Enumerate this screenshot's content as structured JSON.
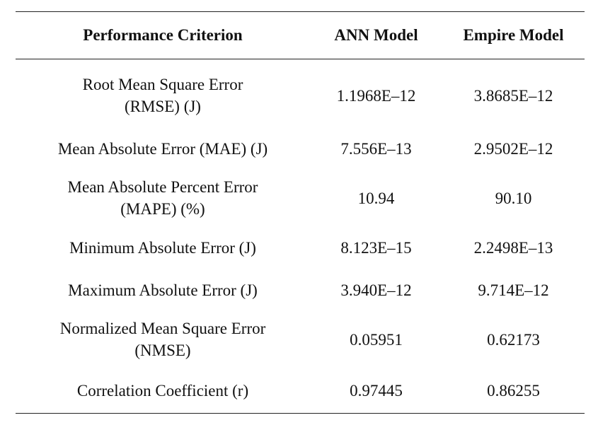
{
  "table": {
    "headers": [
      "Performance Criterion",
      "ANN Model",
      "Empire Model"
    ],
    "rows": [
      {
        "criterion": "Root Mean Square Error (RMSE) (J)",
        "ann": "1.1968E–12",
        "empire": "3.8685E–12"
      },
      {
        "criterion": "Mean Absolute Error (MAE) (J)",
        "ann": "7.556E–13",
        "empire": "2.9502E–12"
      },
      {
        "criterion": "Mean Absolute Percent Error (MAPE) (%)",
        "ann": "10.94",
        "empire": "90.10"
      },
      {
        "criterion": "Minimum Absolute Error (J)",
        "ann": "8.123E–15",
        "empire": "2.2498E–13"
      },
      {
        "criterion": "Maximum Absolute Error (J)",
        "ann": "3.940E–12",
        "empire": "9.714E–12"
      },
      {
        "criterion": "Normalized Mean Square Error (NMSE)",
        "ann": "0.05951",
        "empire": "0.62173"
      },
      {
        "criterion": "Correlation Coefficient (r)",
        "ann": "0.97445",
        "empire": "0.86255"
      }
    ]
  }
}
